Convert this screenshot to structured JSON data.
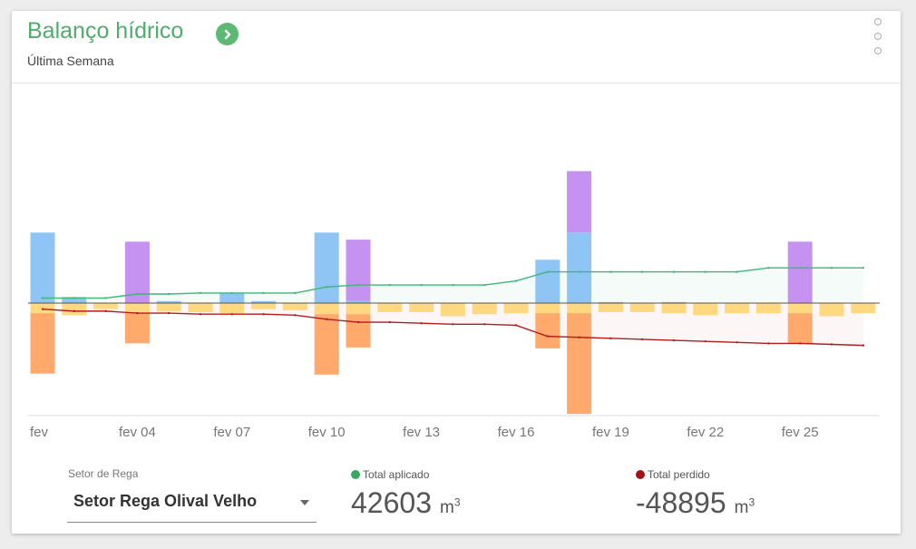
{
  "header": {
    "title": "Balanço hídrico",
    "subtitle": "Última Semana"
  },
  "icons": {
    "go": "chevron-right-circle-icon",
    "menu": "kebab-menu-icon"
  },
  "colors": {
    "title": "#4cae6a",
    "irrigation": "#8ec5f5",
    "rain": "#c592f2",
    "loss_large": "#ffa96c",
    "loss_small": "#ffd880",
    "applied_line": "#3db878",
    "lost_line": "#b21e1e",
    "applied_dot": "#3aa85f",
    "lost_dot": "#a11414"
  },
  "chart_data": {
    "type": "bar",
    "stacked": true,
    "x_tick_labels": [
      "fev",
      "fev 04",
      "fev 07",
      "fev 10",
      "fev 13",
      "fev 16",
      "fev 19",
      "fev 22",
      "fev 25"
    ],
    "x_tick_days": [
      1,
      4,
      7,
      10,
      13,
      16,
      19,
      22,
      25
    ],
    "days": [
      1,
      2,
      3,
      4,
      5,
      6,
      7,
      8,
      9,
      10,
      11,
      12,
      13,
      14,
      15,
      16,
      17,
      18,
      19,
      20,
      21,
      22,
      23,
      24,
      25,
      26,
      27
    ],
    "positive_series": [
      {
        "role": "irrigation",
        "values": [
          70,
          6,
          0,
          0,
          2,
          0,
          10,
          2,
          0,
          70,
          2,
          0,
          0,
          0,
          0,
          0,
          43,
          70,
          1,
          0,
          1,
          0,
          0,
          0,
          0,
          0,
          0
        ]
      },
      {
        "role": "rain",
        "values": [
          0,
          0,
          0,
          61,
          0,
          0,
          0,
          0,
          0,
          0,
          61,
          0,
          0,
          0,
          0,
          0,
          0,
          61,
          0,
          0,
          0,
          0,
          0,
          0,
          61,
          0,
          0
        ]
      }
    ],
    "negative_series": [
      {
        "role": "loss_large",
        "values": [
          -60,
          0,
          0,
          -30,
          0,
          0,
          0,
          0,
          0,
          -60,
          -33,
          0,
          0,
          0,
          0,
          0,
          -35,
          -100,
          0,
          0,
          0,
          0,
          0,
          0,
          -30,
          0,
          0
        ]
      },
      {
        "role": "loss_small",
        "values": [
          -10,
          -12,
          -6,
          -10,
          -8,
          -9,
          -10,
          -6,
          -7,
          -11,
          -11,
          -9,
          -9,
          -13,
          -11,
          -10,
          -10,
          -10,
          -9,
          -9,
          -10,
          -12,
          -10,
          -10,
          -10,
          -13,
          -10
        ]
      }
    ],
    "cumulative_applied": [
      5,
      5,
      5,
      9,
      9,
      10,
      10,
      10,
      10,
      16,
      18,
      18,
      18,
      18,
      18,
      22,
      31,
      31,
      31,
      31,
      31,
      31,
      31,
      35,
      35,
      35,
      35
    ],
    "cumulative_lost": [
      -6,
      -8,
      -8,
      -10,
      -10,
      -11,
      -11,
      -11,
      -12,
      -16,
      -19,
      -19,
      -20,
      -21,
      -21,
      -22,
      -33,
      -34,
      -35,
      -36,
      -37,
      -38,
      -39,
      -40,
      -40,
      -41,
      -42
    ],
    "ylim": [
      -115,
      115
    ]
  },
  "controls": {
    "sector_label": "Setor de Rega",
    "sector_value": "Setor Rega Olival Velho"
  },
  "stats": {
    "applied_label": "Total aplicado",
    "applied_value": "42603",
    "lost_label": "Total perdido",
    "lost_value": "-48895",
    "unit": "m",
    "unit_exp": "3"
  }
}
